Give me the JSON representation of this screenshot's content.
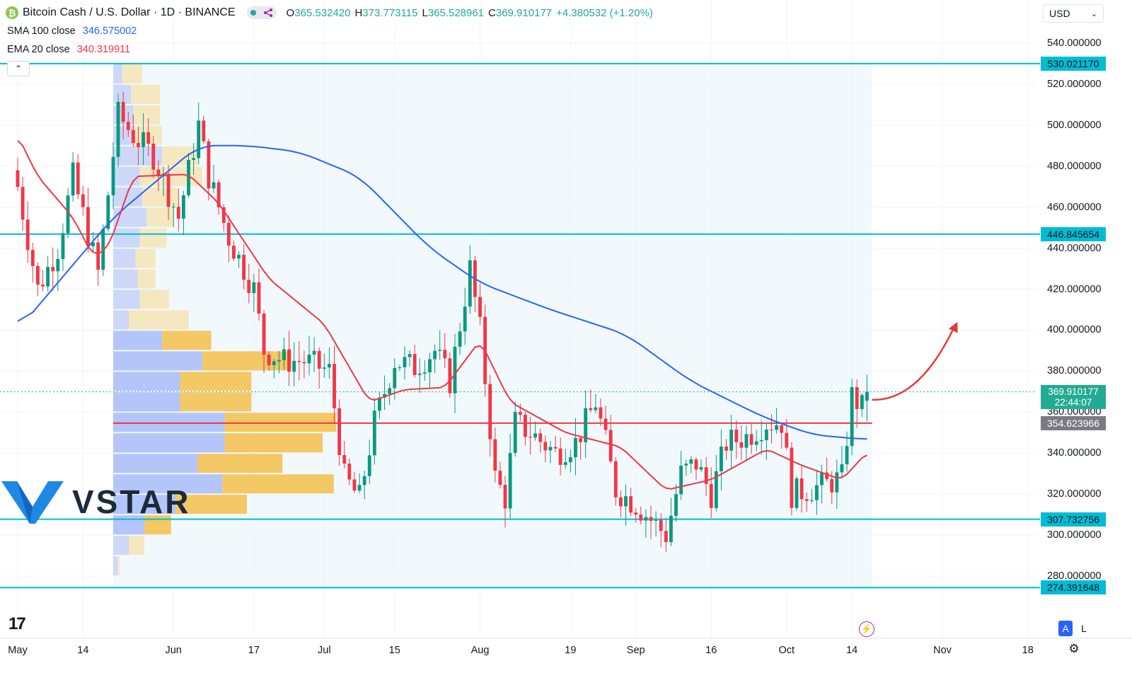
{
  "header": {
    "symbol_title": "Bitcoin Cash / U.S. Dollar · 1D · BINANCE",
    "coin_glyph": "₿",
    "open_label": "O",
    "open": "365.532420",
    "high_label": "H",
    "high": "373.773115",
    "low_label": "L",
    "low": "365.528961",
    "close_label": "C",
    "close": "369.910177",
    "change": "+4.380532 (+1.20%)"
  },
  "indicators": {
    "sma": {
      "name": "SMA 100 close",
      "value": "346.575002",
      "color": "#2962ff"
    },
    "ema": {
      "name": "EMA 20 close",
      "value": "340.319911",
      "color": "#f23645"
    }
  },
  "currency_selector": {
    "value": "USD"
  },
  "price_tags": {
    "last_price": "369.910177",
    "countdown": "22:44:07",
    "poc": "354.623966",
    "levels": [
      "530.021170",
      "446.845654",
      "307.732756",
      "274.391648"
    ]
  },
  "bottom_buttons": {
    "auto": "A",
    "log": "L"
  },
  "logo": {
    "text": "VSTAR"
  },
  "chart_data": {
    "type": "candlestick",
    "title": "Bitcoin Cash / U.S. Dollar · 1D · BINANCE",
    "y_ticks": [
      280,
      300,
      320,
      340,
      360,
      380,
      400,
      420,
      440,
      460,
      480,
      500,
      520,
      540
    ],
    "y_tick_labels": [
      "280.000000",
      "300.000000",
      "320.000000",
      "340.000000",
      "360.000000",
      "380.000000",
      "400.000000",
      "420.000000",
      "440.000000",
      "460.000000",
      "480.000000",
      "500.000000",
      "520.000000",
      "540.000000"
    ],
    "ylim": [
      262,
      552
    ],
    "x_labels": [
      {
        "label": "May",
        "date": "2024-05-01"
      },
      {
        "label": "14",
        "date": "2024-05-14"
      },
      {
        "label": "Jun",
        "date": "2024-06-01"
      },
      {
        "label": "17",
        "date": "2024-06-17"
      },
      {
        "label": "Jul",
        "date": "2024-07-01"
      },
      {
        "label": "15",
        "date": "2024-07-15"
      },
      {
        "label": "Aug",
        "date": "2024-08-01"
      },
      {
        "label": "19",
        "date": "2024-08-19"
      },
      {
        "label": "Sep",
        "date": "2024-09-01"
      },
      {
        "label": "16",
        "date": "2024-09-16"
      },
      {
        "label": "Oct",
        "date": "2024-10-01"
      },
      {
        "label": "14",
        "date": "2024-10-14"
      },
      {
        "label": "Nov",
        "date": "2024-11-01"
      },
      {
        "label": "18",
        "date": "2024-11-18"
      }
    ],
    "horizontal_levels": [
      530.02117,
      446.845654,
      307.732756,
      274.391648
    ],
    "poc_level": 354.623966,
    "last_price": 369.910177,
    "closes_key_points": [
      [
        "2024-05-01",
        470
      ],
      [
        "2024-05-05",
        420
      ],
      [
        "2024-05-09",
        440
      ],
      [
        "2024-05-12",
        475
      ],
      [
        "2024-05-17",
        428
      ],
      [
        "2024-05-21",
        505
      ],
      [
        "2024-05-24",
        495
      ],
      [
        "2024-05-28",
        485
      ],
      [
        "2024-06-02",
        455
      ],
      [
        "2024-06-06",
        500
      ],
      [
        "2024-06-08",
        475
      ],
      [
        "2024-06-12",
        445
      ],
      [
        "2024-06-17",
        420
      ],
      [
        "2024-06-19",
        390
      ],
      [
        "2024-06-23",
        385
      ],
      [
        "2024-06-27",
        385
      ],
      [
        "2024-07-02",
        380
      ],
      [
        "2024-07-05",
        328
      ],
      [
        "2024-07-08",
        318
      ],
      [
        "2024-07-11",
        355
      ],
      [
        "2024-07-15",
        385
      ],
      [
        "2024-07-19",
        382
      ],
      [
        "2024-07-23",
        390
      ],
      [
        "2024-07-26",
        375
      ],
      [
        "2024-07-30",
        430
      ],
      [
        "2024-08-01",
        400
      ],
      [
        "2024-08-04",
        328
      ],
      [
        "2024-08-06",
        318
      ],
      [
        "2024-08-08",
        355
      ],
      [
        "2024-08-12",
        348
      ],
      [
        "2024-08-16",
        340
      ],
      [
        "2024-08-20",
        345
      ],
      [
        "2024-08-24",
        365
      ],
      [
        "2024-08-26",
        345
      ],
      [
        "2024-08-28",
        322
      ],
      [
        "2024-09-01",
        315
      ],
      [
        "2024-09-05",
        305
      ],
      [
        "2024-09-07",
        300
      ],
      [
        "2024-09-10",
        330
      ],
      [
        "2024-09-13",
        335
      ],
      [
        "2024-09-16",
        320
      ],
      [
        "2024-09-19",
        345
      ],
      [
        "2024-09-23",
        348
      ],
      [
        "2024-09-27",
        355
      ],
      [
        "2024-09-30",
        355
      ],
      [
        "2024-10-02",
        320
      ],
      [
        "2024-10-05",
        322
      ],
      [
        "2024-10-09",
        325
      ],
      [
        "2024-10-12",
        328
      ],
      [
        "2024-10-14",
        368
      ],
      [
        "2024-10-16",
        362
      ],
      [
        "2024-10-17",
        369.91
      ]
    ],
    "sma_100_key_points": [
      [
        "2024-05-01",
        400
      ],
      [
        "2024-05-20",
        455
      ],
      [
        "2024-06-06",
        490
      ],
      [
        "2024-06-16",
        490
      ],
      [
        "2024-06-26",
        487
      ],
      [
        "2024-07-08",
        475
      ],
      [
        "2024-07-22",
        440
      ],
      [
        "2024-08-01",
        423
      ],
      [
        "2024-08-15",
        410
      ],
      [
        "2024-08-30",
        398
      ],
      [
        "2024-09-12",
        375
      ],
      [
        "2024-09-26",
        358
      ],
      [
        "2024-10-06",
        349
      ],
      [
        "2024-10-17",
        346.58
      ]
    ],
    "ema_20_key_points": [
      [
        "2024-05-01",
        495
      ],
      [
        "2024-05-05",
        475
      ],
      [
        "2024-05-12",
        455
      ],
      [
        "2024-05-16",
        436
      ],
      [
        "2024-05-19",
        440
      ],
      [
        "2024-05-24",
        475
      ],
      [
        "2024-06-04",
        476
      ],
      [
        "2024-06-10",
        462
      ],
      [
        "2024-06-20",
        425
      ],
      [
        "2024-07-01",
        403
      ],
      [
        "2024-07-10",
        365
      ],
      [
        "2024-07-17",
        371
      ],
      [
        "2024-07-25",
        372
      ],
      [
        "2024-08-01",
        395
      ],
      [
        "2024-08-07",
        365
      ],
      [
        "2024-08-18",
        350
      ],
      [
        "2024-08-29",
        343
      ],
      [
        "2024-09-07",
        322
      ],
      [
        "2024-09-16",
        327
      ],
      [
        "2024-09-27",
        342
      ],
      [
        "2024-10-04",
        334
      ],
      [
        "2024-10-12",
        327
      ],
      [
        "2024-10-17",
        340.32
      ]
    ],
    "volume_profile": {
      "price_bins_low_high": [
        [
          520,
          530
        ],
        [
          510,
          520
        ],
        [
          500,
          510
        ],
        [
          490,
          500
        ],
        [
          480,
          490
        ],
        [
          470,
          480
        ],
        [
          460,
          470
        ],
        [
          450,
          460
        ],
        [
          440,
          450
        ],
        [
          430,
          440
        ],
        [
          420,
          430
        ],
        [
          410,
          420
        ],
        [
          400,
          410
        ],
        [
          390,
          400
        ],
        [
          380,
          390
        ],
        [
          370,
          380
        ],
        [
          360,
          370
        ],
        [
          350,
          360
        ],
        [
          340,
          350
        ],
        [
          330,
          340
        ],
        [
          320,
          330
        ],
        [
          310,
          320
        ],
        [
          300,
          310
        ],
        [
          290,
          300
        ],
        [
          280,
          290
        ]
      ],
      "up_volume_relative": [
        4,
        8,
        9,
        9,
        22,
        12,
        13,
        15,
        12,
        10,
        11,
        12,
        7,
        22,
        40,
        30,
        30,
        50,
        50,
        38,
        49,
        28,
        14,
        7,
        2
      ],
      "down_volume_relative": [
        9,
        13,
        12,
        13,
        16,
        28,
        16,
        12,
        12,
        9,
        8,
        13,
        27,
        22,
        40,
        32,
        32,
        50,
        44,
        38,
        50,
        32,
        12,
        7,
        1
      ],
      "point_of_control": 354.623966
    },
    "projection_arrow": {
      "from": [
        "2024-10-18",
        366
      ],
      "to": [
        "2024-11-04",
        404
      ],
      "color": "#f23645"
    }
  }
}
